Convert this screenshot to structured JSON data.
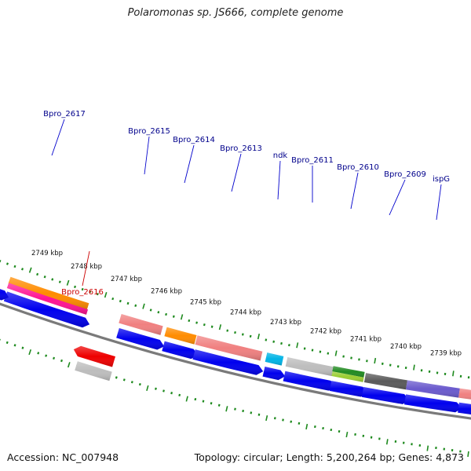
{
  "title": "Polaromonas sp. JS666, complete genome",
  "footer": {
    "accession": "Accession: NC_007948",
    "topology": "Topology: circular; Length: 5,200,264 bp; Genes: 4,873"
  },
  "colors": {
    "backbone": "#7a7a7a",
    "tick": "#1e8a1e",
    "forward_gene": "#0000ee",
    "reverse_gene": "#ee0000",
    "label_forward": "#00008b",
    "label_reverse": "#cc0000",
    "leader_forward": "#0000cc",
    "leader_reverse": "#cc0000"
  },
  "scale_labels": [
    "2749 kbp",
    "2748 kbp",
    "2747 kbp",
    "2746 kbp",
    "2745 kbp",
    "2744 kbp",
    "2743 kbp",
    "2742 kbp",
    "2741 kbp",
    "2740 kbp",
    "2739 kbp"
  ],
  "gene_labels": [
    {
      "name": "Bpro_2617",
      "strand": "forward"
    },
    {
      "name": "Bpro_2616",
      "strand": "reverse"
    },
    {
      "name": "Bpro_2615",
      "strand": "forward"
    },
    {
      "name": "Bpro_2614",
      "strand": "forward"
    },
    {
      "name": "Bpro_2613",
      "strand": "forward"
    },
    {
      "name": "ndk",
      "strand": "forward"
    },
    {
      "name": "Bpro_2611",
      "strand": "forward"
    },
    {
      "name": "Bpro_2610",
      "strand": "forward"
    },
    {
      "name": "Bpro_2609",
      "strand": "forward"
    },
    {
      "name": "ispG",
      "strand": "forward"
    }
  ],
  "feature_colors": {
    "orange": "#ff8c00",
    "pink": "#ff1493",
    "salmon": "#f08080",
    "cyan": "#00b4e6",
    "light_gray": "#bdbdbd",
    "green": "#228b22",
    "lime": "#9acd32",
    "dark_gray": "#5a5a5a",
    "slate": "#6a5acd"
  }
}
